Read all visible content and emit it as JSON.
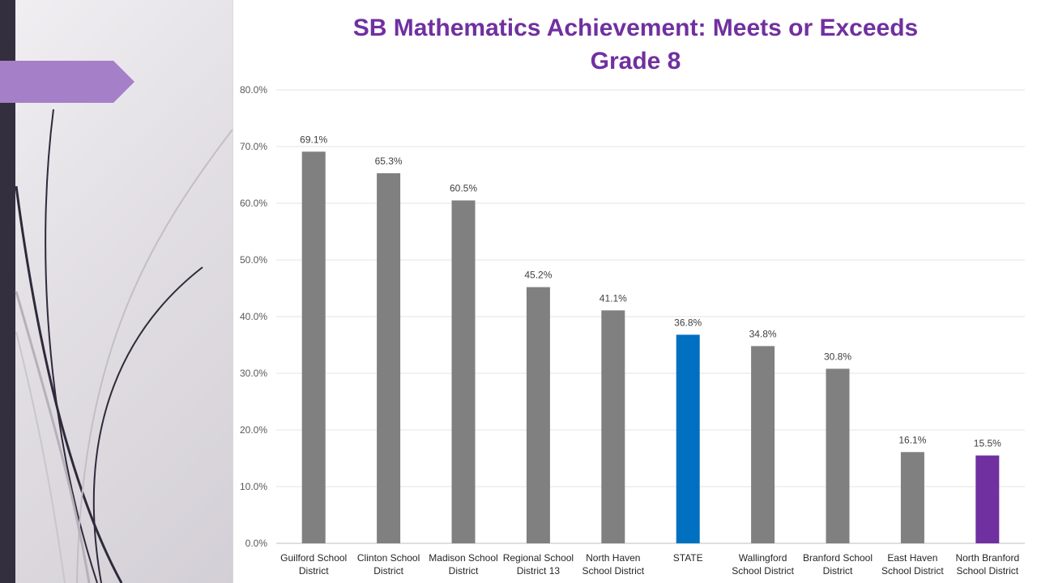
{
  "chart_data": {
    "type": "bar",
    "title": "SB Mathematics Achievement: Meets or Exceeds",
    "subtitle": "Grade 8",
    "categories": [
      [
        "Guilford School",
        "District"
      ],
      [
        "Clinton School",
        "District"
      ],
      [
        "Madison School",
        "District"
      ],
      [
        "Regional School",
        "District 13"
      ],
      [
        "North Haven",
        "School District"
      ],
      [
        "STATE"
      ],
      [
        "Wallingford",
        "School District"
      ],
      [
        "Branford School",
        "District"
      ],
      [
        "East Haven",
        "School District"
      ],
      [
        "North Branford",
        "School District"
      ]
    ],
    "values": [
      69.1,
      65.3,
      60.5,
      45.2,
      41.1,
      36.8,
      34.8,
      30.8,
      16.1,
      15.5
    ],
    "data_labels": [
      "69.1%",
      "65.3%",
      "60.5%",
      "45.2%",
      "41.1%",
      "36.8%",
      "34.8%",
      "30.8%",
      "16.1%",
      "15.5%"
    ],
    "bar_colors": [
      "#808080",
      "#808080",
      "#808080",
      "#808080",
      "#808080",
      "#0070c0",
      "#808080",
      "#808080",
      "#808080",
      "#7030a0"
    ],
    "ylim": [
      0,
      80
    ],
    "yticks": [
      "0.0%",
      "10.0%",
      "20.0%",
      "30.0%",
      "40.0%",
      "50.0%",
      "60.0%",
      "70.0%",
      "80.0%"
    ],
    "grid": true,
    "legend": "none",
    "xlabel": "",
    "ylabel": ""
  },
  "theme": {
    "title_color": "#7030a0",
    "accent_tab_color": "#a57fc8",
    "dark_strip_color": "#332f3f"
  }
}
